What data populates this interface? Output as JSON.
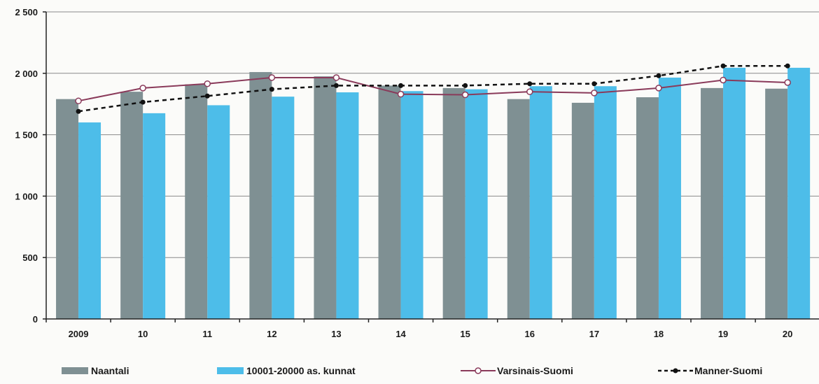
{
  "chart_data": {
    "type": "bar",
    "categories": [
      "2009",
      "10",
      "11",
      "12",
      "13",
      "14",
      "15",
      "16",
      "17",
      "18",
      "19",
      "20"
    ],
    "series": [
      {
        "name": "Naantali",
        "kind": "bar",
        "color": "#7f9093",
        "values": [
          1790,
          1850,
          1910,
          2010,
          1975,
          1900,
          1880,
          1790,
          1760,
          1805,
          1880,
          1875
        ]
      },
      {
        "name": "10001-20000 as. kunnat",
        "kind": "bar",
        "color": "#4dbde9",
        "values": [
          1600,
          1675,
          1740,
          1810,
          1845,
          1855,
          1870,
          1895,
          1895,
          1965,
          2045,
          2045
        ]
      },
      {
        "name": "Varsinais-Suomi",
        "kind": "line",
        "color": "#8a3a5a",
        "values": [
          1775,
          1880,
          1915,
          1965,
          1965,
          1830,
          1825,
          1850,
          1840,
          1880,
          1945,
          1925
        ]
      },
      {
        "name": "Manner-Suomi",
        "kind": "line",
        "color": "#111111",
        "dashed": true,
        "values": [
          1690,
          1765,
          1815,
          1870,
          1900,
          1900,
          1900,
          1915,
          1915,
          1980,
          2060,
          2060
        ]
      }
    ],
    "yticks": [
      "0",
      "500",
      "1 000",
      "1 500",
      "2 000",
      "2 500"
    ],
    "ylim": [
      0,
      2500
    ],
    "grid": true,
    "legend_position": "bottom"
  }
}
